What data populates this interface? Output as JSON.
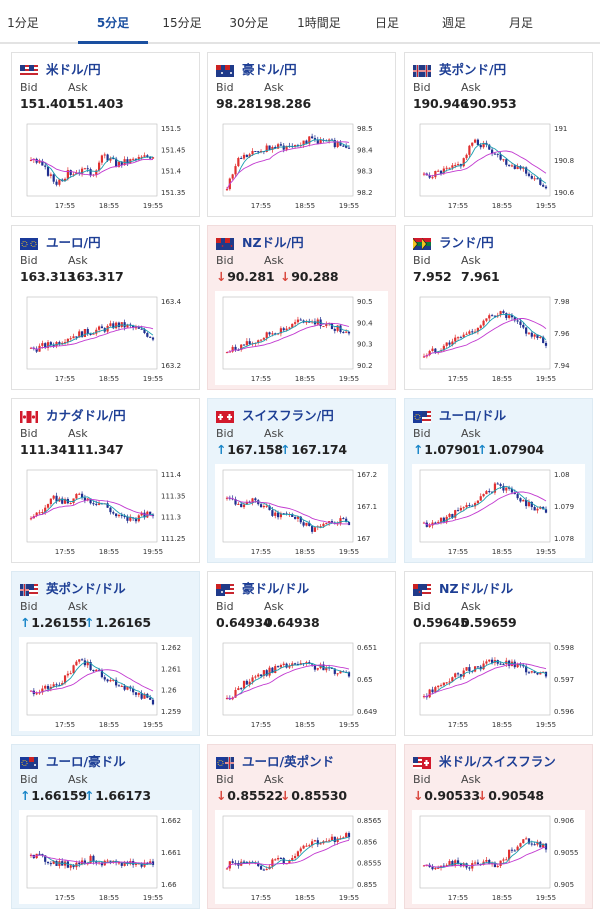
{
  "tabs": [
    "1分足",
    "5分足",
    "15分足",
    "30分足",
    "1時間足",
    "日足",
    "週足",
    "月足"
  ],
  "active_tab": "5分足",
  "labels": {
    "bid": "Bid",
    "ask": "Ask"
  },
  "colors": {
    "accent": "#1a4fa0",
    "up": "#1a86c8",
    "down": "#d9473d",
    "candle_up": "#e03030",
    "candle_down": "#1f2f8f",
    "ma_short": "#1a9fb0",
    "ma_long": "#c23ad0"
  },
  "x_ticks": [
    "17:55",
    "18:55",
    "19:55"
  ],
  "pairs": [
    {
      "name": "米ドル/円",
      "flag": "us-jp-flag-icon",
      "trend": "none",
      "bid": "151.401",
      "ask": "151.403",
      "y_ticks": [
        "151.5",
        "151.45",
        "151.4",
        "151.35"
      ]
    },
    {
      "name": "豪ドル/円",
      "flag": "au-jp-flag-icon",
      "trend": "none",
      "bid": "98.281",
      "ask": "98.286",
      "y_ticks": [
        "98.5",
        "98.4",
        "98.3",
        "98.2"
      ]
    },
    {
      "name": "英ポンド/円",
      "flag": "gb-jp-flag-icon",
      "trend": "none",
      "bid": "190.946",
      "ask": "190.953",
      "y_ticks": [
        "191",
        "190.8",
        "190.6"
      ]
    },
    {
      "name": "ユーロ/円",
      "flag": "eu-jp-flag-icon",
      "trend": "none",
      "bid": "163.313",
      "ask": "163.317",
      "y_ticks": [
        "163.4",
        "163.2"
      ]
    },
    {
      "name": "NZドル/円",
      "flag": "nz-jp-flag-icon",
      "trend": "down",
      "bid": "90.281",
      "ask": "90.288",
      "y_ticks": [
        "90.5",
        "90.4",
        "90.3",
        "90.2"
      ]
    },
    {
      "name": "ランド/円",
      "flag": "za-jp-flag-icon",
      "trend": "none",
      "bid": "7.952",
      "ask": "7.961",
      "y_ticks": [
        "7.98",
        "7.96",
        "7.94"
      ]
    },
    {
      "name": "カナダドル/円",
      "flag": "ca-jp-flag-icon",
      "trend": "none",
      "bid": "111.341",
      "ask": "111.347",
      "y_ticks": [
        "111.4",
        "111.35",
        "111.3",
        "111.25"
      ]
    },
    {
      "name": "スイスフラン/円",
      "flag": "ch-jp-flag-icon",
      "trend": "up",
      "bid": "167.158",
      "ask": "167.174",
      "y_ticks": [
        "167.2",
        "167.1",
        "167"
      ]
    },
    {
      "name": "ユーロ/ドル",
      "flag": "eu-us-flag-icon",
      "trend": "up",
      "bid": "1.07901",
      "ask": "1.07904",
      "y_ticks": [
        "1.08",
        "1.079",
        "1.078"
      ]
    },
    {
      "name": "英ポンド/ドル",
      "flag": "gb-us-flag-icon",
      "trend": "up",
      "bid": "1.26155",
      "ask": "1.26165",
      "y_ticks": [
        "1.262",
        "1.261",
        "1.26",
        "1.259"
      ]
    },
    {
      "name": "豪ドル/ドル",
      "flag": "au-us-flag-icon",
      "trend": "none",
      "bid": "0.64934",
      "ask": "0.64938",
      "y_ticks": [
        "0.651",
        "0.65",
        "0.649"
      ]
    },
    {
      "name": "NZドル/ドル",
      "flag": "nz-us-flag-icon",
      "trend": "none",
      "bid": "0.59645",
      "ask": "0.59659",
      "y_ticks": [
        "0.598",
        "0.597",
        "0.596"
      ]
    },
    {
      "name": "ユーロ/豪ドル",
      "flag": "eu-au-flag-icon",
      "trend": "up",
      "bid": "1.66159",
      "ask": "1.66173",
      "y_ticks": [
        "1.662",
        "1.661",
        "1.66"
      ]
    },
    {
      "name": "ユーロ/英ポンド",
      "flag": "eu-gb-flag-icon",
      "trend": "down",
      "bid": "0.85522",
      "ask": "0.85530",
      "y_ticks": [
        "0.8565",
        "0.856",
        "0.8555",
        "0.855"
      ]
    },
    {
      "name": "米ドル/スイスフラン",
      "flag": "us-ch-flag-icon",
      "trend": "down",
      "bid": "0.90533",
      "ask": "0.90548",
      "y_ticks": [
        "0.906",
        "0.9055",
        "0.905"
      ]
    }
  ]
}
